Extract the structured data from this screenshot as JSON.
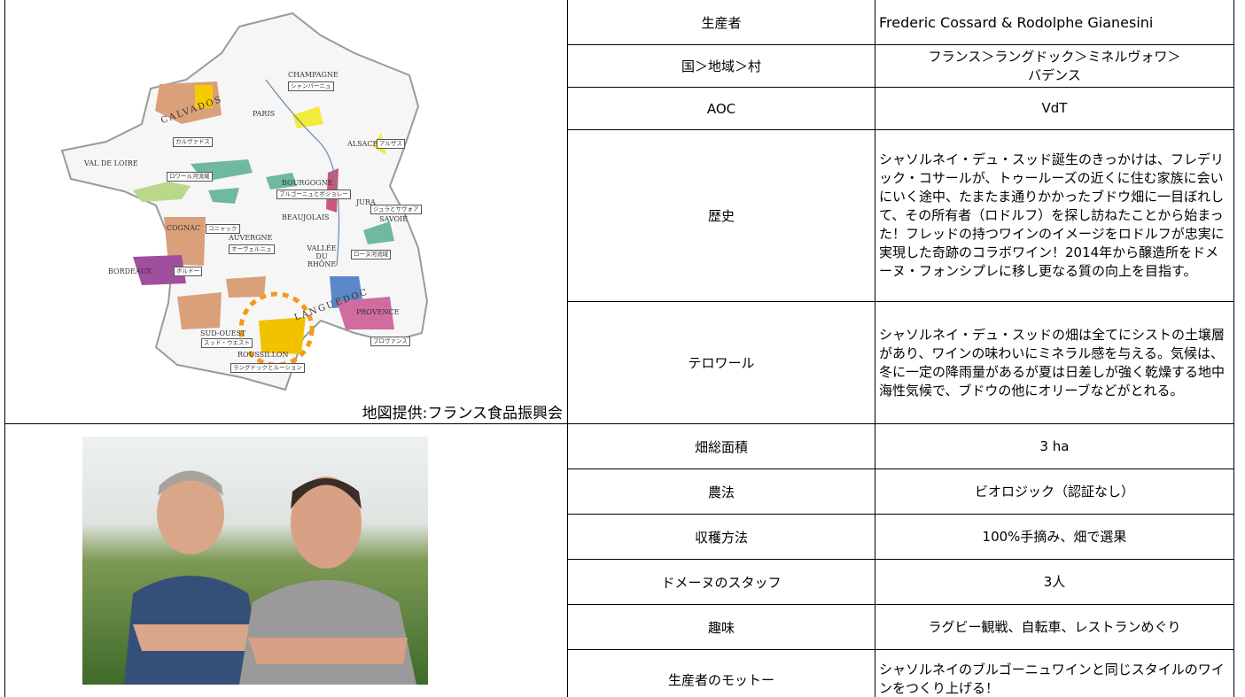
{
  "map": {
    "caption": "地図提供:フランス食品振興会",
    "labels": [
      "CHAMPAGNE",
      "シャンパーニュ",
      "ALSACE",
      "アルザス",
      "CALVADOS",
      "カルヴァドス",
      "PARIS",
      "VAL DE LOIRE",
      "ロワール河流域",
      "BOURGOGNE",
      "ブルゴーニュとボジョレー",
      "JURA",
      "ジュラとサヴォア",
      "SAVOIE",
      "BEAUJOLAIS",
      "COGNAC",
      "コニャック",
      "AUVERGNE",
      "オーヴェルニュ",
      "VALLÉE DU RHÔNE",
      "ローヌ河流域",
      "BORDEAUX",
      "ボルドー",
      "LANGUEDOC",
      "PROVENCE",
      "プロヴァンス",
      "SUD-OUEST",
      "スッド・ウエスト",
      "ROUSSILLON",
      "ラングドックとルーション"
    ]
  },
  "table": {
    "rows": [
      [
        "生産者",
        "Frederic Cossard & Rodolphe Gianesini"
      ],
      [
        "国＞地域＞村",
        "フランス＞ラングドック＞ミネルヴォワ＞バデンス"
      ],
      [
        "AOC",
        "VdT"
      ],
      [
        "歴史",
        "シャソルネイ・デュ・スッド誕生のきっかけは、フレデリック・コサールが、トゥールーズの近くに住む家族に会いにいく途中、たまたま通りかかったブドウ畑に一目ぼれして、その所有者（ロドルフ）を探し訪ねたことから始まった！フレッドの持つワインのイメージをロドルフが忠実に実現した奇跡のコラボワイン！2014年から醸造所をドメーヌ・フォンシプレに移し更なる質の向上を目指す。"
      ],
      [
        "テロワール",
        "シャソルネイ・デュ・スッドの畑は全てにシストの土壌層があり、ワインの味わいにミネラル感を与える。気候は、冬に一定の降雨量があるが夏は日差しが強く乾燥する地中海性気候で、ブドウの他にオリーブなどがとれる。"
      ],
      [
        "畑総面積",
        "3 ha"
      ],
      [
        "農法",
        "ビオロジック（認証なし）"
      ],
      [
        "収穫方法",
        "100%手摘み、畑で選果"
      ],
      [
        "ドメーヌのスタッフ",
        "3人"
      ],
      [
        "趣味",
        "ラグビー観戦、自転車、レストランめぐり"
      ],
      [
        "生産者のモットー",
        "シャソルネイのブルゴーニュワインと同じスタイルのワインをつくり上げる！"
      ]
    ]
  }
}
